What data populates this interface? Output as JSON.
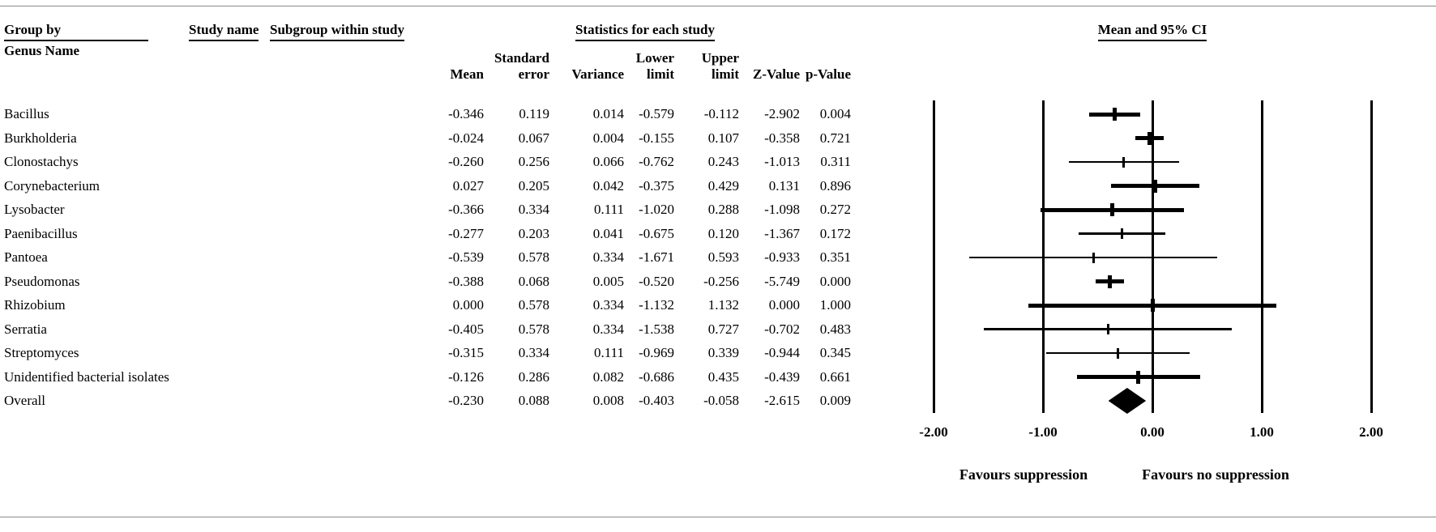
{
  "page": {
    "group_by_label": "Group by",
    "group_by_value": "Genus Name",
    "study_name_label": "Study name",
    "subgroup_label": "Subgroup within study",
    "stats_title": "Statistics for each study",
    "ci_title": "Mean and 95% CI",
    "favours_left": "Favours suppression",
    "favours_right": "Favours no suppression"
  },
  "columns": [
    {
      "top": "",
      "bottom": "Mean"
    },
    {
      "top": "Standard",
      "bottom": "error"
    },
    {
      "top": "",
      "bottom": "Variance"
    },
    {
      "top": "Lower",
      "bottom": "limit"
    },
    {
      "top": "Upper",
      "bottom": "limit"
    },
    {
      "top": "",
      "bottom": "Z-Value"
    },
    {
      "top": "",
      "bottom": "p-Value"
    }
  ],
  "rows": [
    {
      "name": "Bacillus",
      "mean": -0.346,
      "lower": -0.579,
      "upper": -0.112,
      "bold": true,
      "overall": false,
      "stats": [
        "-0.346",
        "0.119",
        "0.014",
        "-0.579",
        "-0.112",
        "-2.902",
        "0.004"
      ]
    },
    {
      "name": "Burkholderia",
      "mean": -0.024,
      "lower": -0.155,
      "upper": 0.107,
      "bold": true,
      "overall": false,
      "stats": [
        "-0.024",
        "0.067",
        "0.004",
        "-0.155",
        "0.107",
        "-0.358",
        "0.721"
      ]
    },
    {
      "name": "Clonostachys",
      "mean": -0.26,
      "lower": -0.762,
      "upper": 0.243,
      "bold": false,
      "overall": false,
      "stats": [
        "-0.260",
        "0.256",
        "0.066",
        "-0.762",
        "0.243",
        "-1.013",
        "0.311"
      ]
    },
    {
      "name": "Corynebacterium",
      "mean": 0.027,
      "lower": -0.375,
      "upper": 0.429,
      "bold": true,
      "overall": false,
      "stats": [
        "0.027",
        "0.205",
        "0.042",
        "-0.375",
        "0.429",
        "0.131",
        "0.896"
      ]
    },
    {
      "name": "Lysobacter",
      "mean": -0.366,
      "lower": -1.02,
      "upper": 0.288,
      "bold": true,
      "overall": false,
      "stats": [
        "-0.366",
        "0.334",
        "0.111",
        "-1.020",
        "0.288",
        "-1.098",
        "0.272"
      ]
    },
    {
      "name": "Paenibacillus",
      "mean": -0.277,
      "lower": -0.675,
      "upper": 0.12,
      "bold": false,
      "overall": false,
      "stats": [
        "-0.277",
        "0.203",
        "0.041",
        "-0.675",
        "0.120",
        "-1.367",
        "0.172"
      ]
    },
    {
      "name": "Pantoea",
      "mean": -0.539,
      "lower": -1.671,
      "upper": 0.593,
      "bold": false,
      "overall": false,
      "stats": [
        "-0.539",
        "0.578",
        "0.334",
        "-1.671",
        "0.593",
        "-0.933",
        "0.351"
      ]
    },
    {
      "name": "Pseudomonas",
      "mean": -0.388,
      "lower": -0.52,
      "upper": -0.256,
      "bold": true,
      "overall": false,
      "stats": [
        "-0.388",
        "0.068",
        "0.005",
        "-0.520",
        "-0.256",
        "-5.749",
        "0.000"
      ]
    },
    {
      "name": "Rhizobium",
      "mean": 0.0,
      "lower": -1.132,
      "upper": 1.132,
      "bold": true,
      "overall": false,
      "stats": [
        "0.000",
        "0.578",
        "0.334",
        "-1.132",
        "1.132",
        "0.000",
        "1.000"
      ]
    },
    {
      "name": "Serratia",
      "mean": -0.405,
      "lower": -1.538,
      "upper": 0.727,
      "bold": false,
      "overall": false,
      "stats": [
        "-0.405",
        "0.578",
        "0.334",
        "-1.538",
        "0.727",
        "-0.702",
        "0.483"
      ]
    },
    {
      "name": "Streptomyces",
      "mean": -0.315,
      "lower": -0.969,
      "upper": 0.339,
      "bold": false,
      "overall": false,
      "stats": [
        "-0.315",
        "0.334",
        "0.111",
        "-0.969",
        "0.339",
        "-0.944",
        "0.345"
      ]
    },
    {
      "name": "Unidentified bacterial isolates",
      "mean": -0.126,
      "lower": -0.686,
      "upper": 0.435,
      "bold": true,
      "overall": false,
      "stats": [
        "-0.126",
        "0.286",
        "0.082",
        "-0.686",
        "0.435",
        "-0.439",
        "0.661"
      ]
    },
    {
      "name": "Overall",
      "mean": -0.23,
      "lower": -0.403,
      "upper": -0.058,
      "bold": true,
      "overall": true,
      "stats": [
        "-0.230",
        "0.088",
        "0.008",
        "-0.403",
        "-0.058",
        "-2.615",
        "0.009"
      ]
    }
  ],
  "axis": {
    "ticks": [
      -2,
      -1,
      0,
      1,
      2
    ],
    "tick_labels": [
      "-2.00",
      "-1.00",
      "0.00",
      "1.00",
      "2.00"
    ]
  },
  "chart_data": {
    "type": "forest",
    "title": "Mean and 95% CI",
    "group_by": "Genus Name",
    "stats_columns": [
      "Mean",
      "Standard error",
      "Variance",
      "Lower limit",
      "Upper limit",
      "Z-Value",
      "p-Value"
    ],
    "categories": [
      "Bacillus",
      "Burkholderia",
      "Clonostachys",
      "Corynebacterium",
      "Lysobacter",
      "Paenibacillus",
      "Pantoea",
      "Pseudomonas",
      "Rhizobium",
      "Serratia",
      "Streptomyces",
      "Unidentified bacterial isolates",
      "Overall"
    ],
    "series": [
      {
        "name": "Mean",
        "values": [
          -0.346,
          -0.024,
          -0.26,
          0.027,
          -0.366,
          -0.277,
          -0.539,
          -0.388,
          0.0,
          -0.405,
          -0.315,
          -0.126,
          -0.23
        ]
      },
      {
        "name": "Standard error",
        "values": [
          0.119,
          0.067,
          0.256,
          0.205,
          0.334,
          0.203,
          0.578,
          0.068,
          0.578,
          0.578,
          0.334,
          0.286,
          0.088
        ]
      },
      {
        "name": "Variance",
        "values": [
          0.014,
          0.004,
          0.066,
          0.042,
          0.111,
          0.041,
          0.334,
          0.005,
          0.334,
          0.334,
          0.111,
          0.082,
          0.008
        ]
      },
      {
        "name": "Lower limit",
        "values": [
          -0.579,
          -0.155,
          -0.762,
          -0.375,
          -1.02,
          -0.675,
          -1.671,
          -0.52,
          -1.132,
          -1.538,
          -0.969,
          -0.686,
          -0.403
        ]
      },
      {
        "name": "Upper limit",
        "values": [
          -0.112,
          0.107,
          0.243,
          0.429,
          0.288,
          0.12,
          0.593,
          -0.256,
          1.132,
          0.727,
          0.339,
          0.435,
          -0.058
        ]
      },
      {
        "name": "Z-Value",
        "values": [
          -2.902,
          -0.358,
          -1.013,
          0.131,
          -1.098,
          -1.367,
          -0.933,
          -5.749,
          0.0,
          -0.702,
          -0.944,
          -0.439,
          -2.615
        ]
      },
      {
        "name": "p-Value",
        "values": [
          0.004,
          0.721,
          0.311,
          0.896,
          0.272,
          0.172,
          0.351,
          0.0,
          1.0,
          0.483,
          0.345,
          0.661,
          0.009
        ]
      }
    ],
    "overall": {
      "mean": -0.23,
      "lower": -0.403,
      "upper": -0.058
    },
    "xlim": [
      -2,
      2
    ],
    "xticks": [
      -2.0,
      -1.0,
      0.0,
      1.0,
      2.0
    ],
    "xlabel_left": "Favours suppression",
    "xlabel_right": "Favours no suppression",
    "grid": "vertical-lines-at-ticks",
    "legend": "none"
  }
}
